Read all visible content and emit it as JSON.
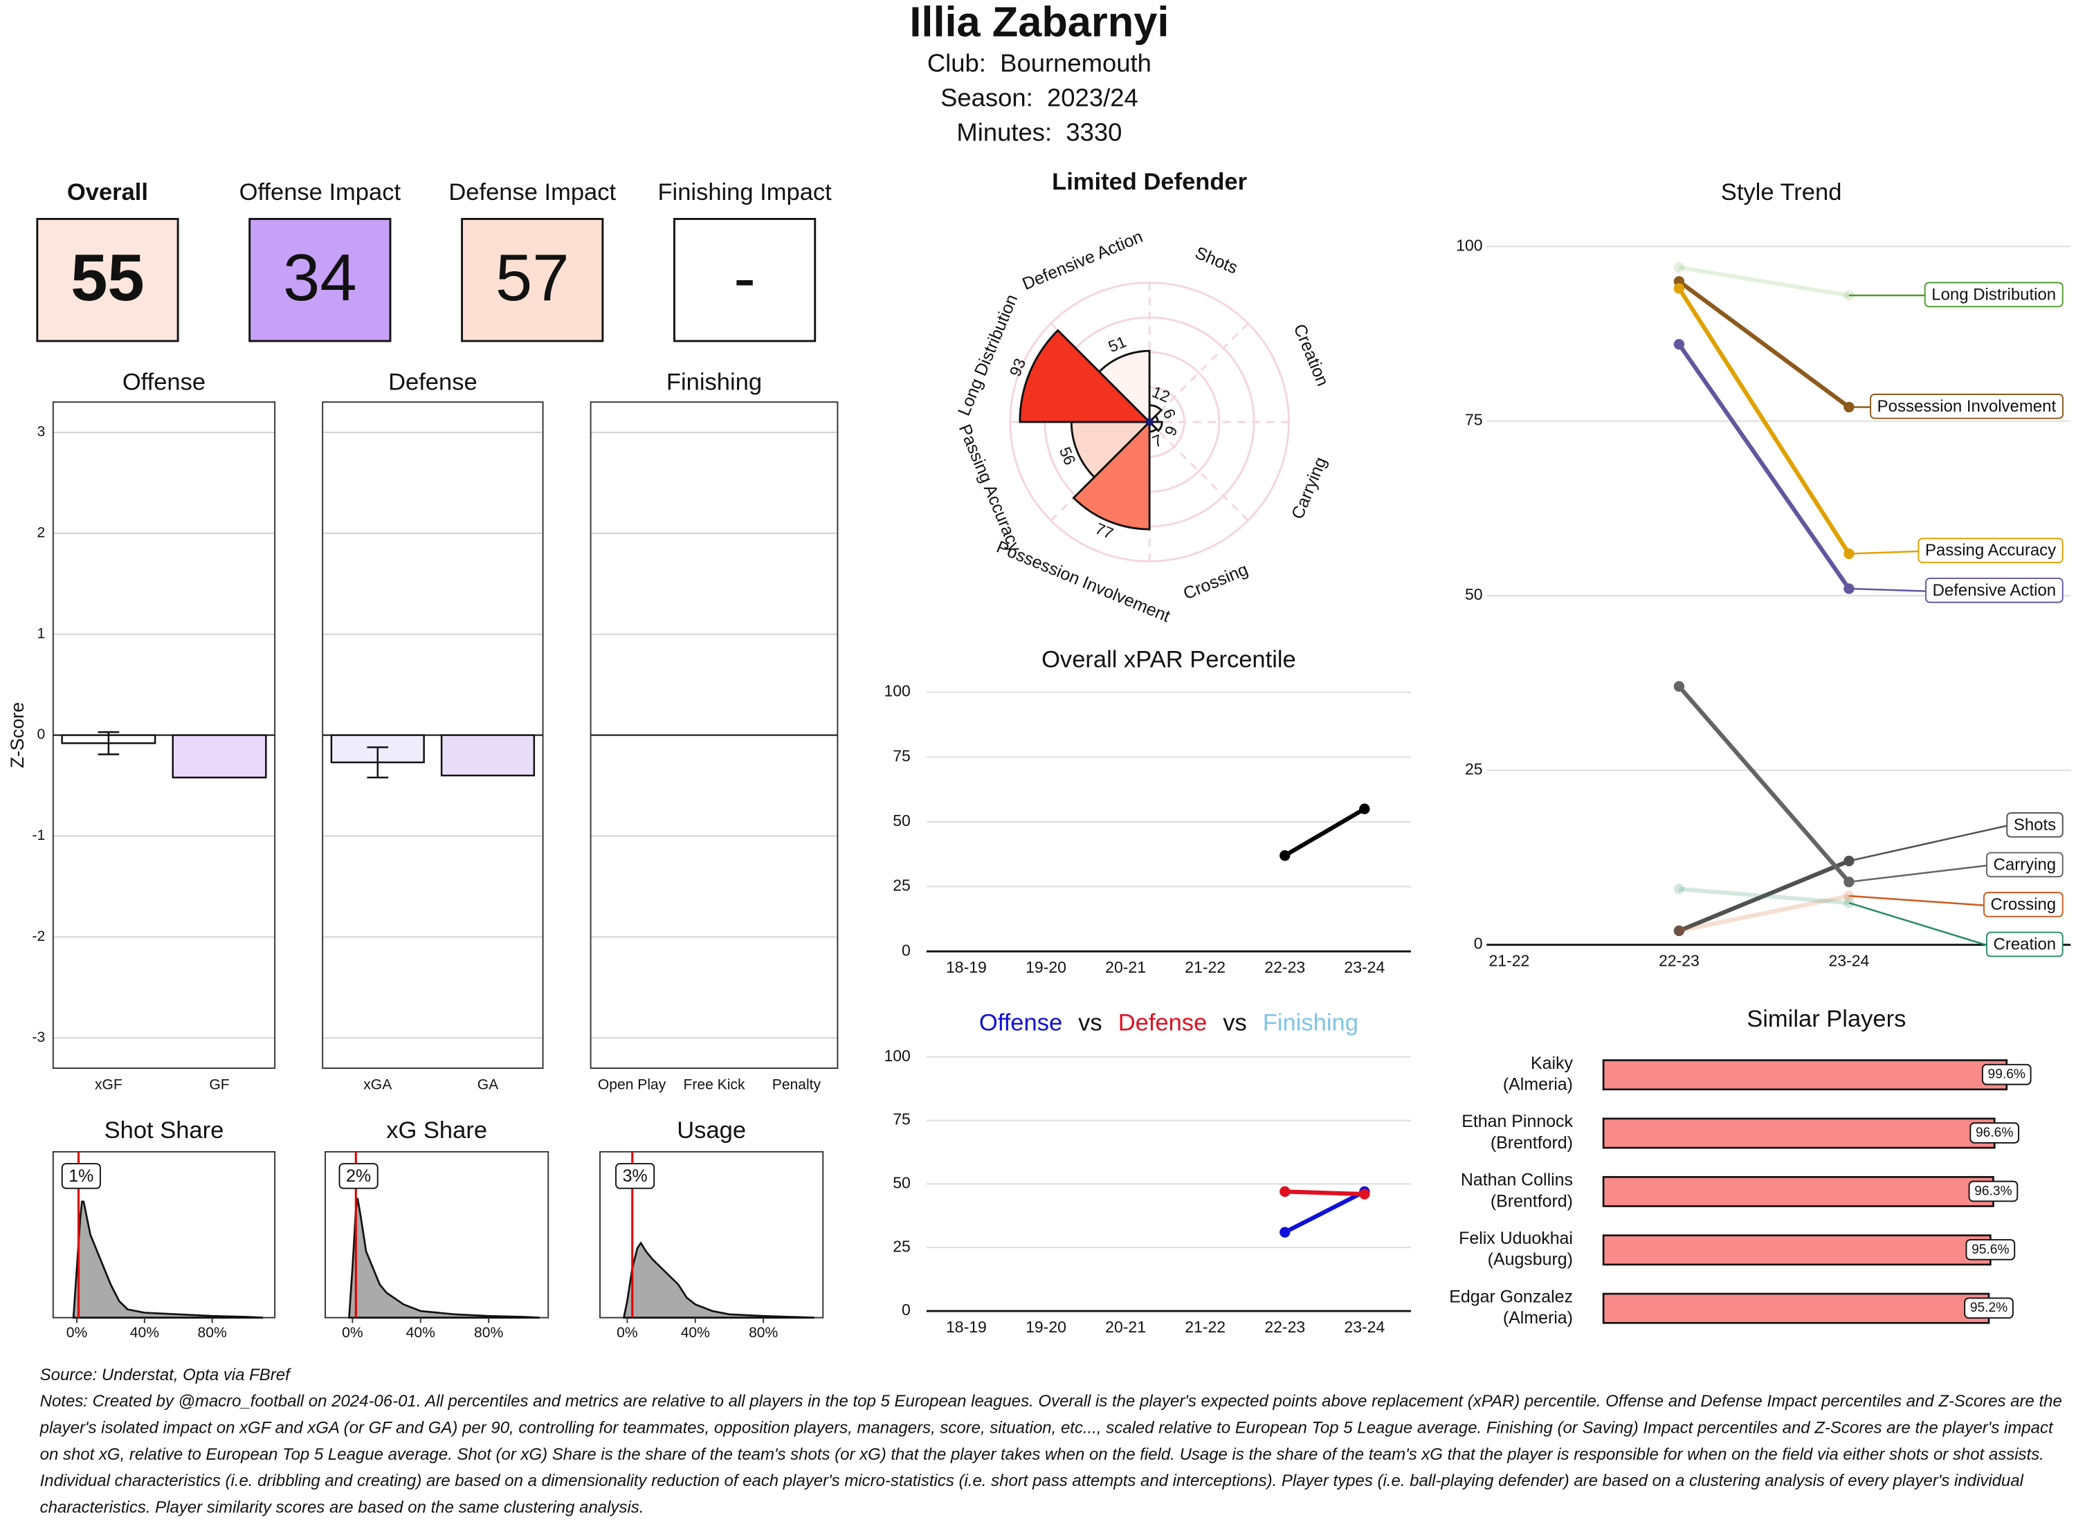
{
  "header": {
    "title": "Illia Zabarnyi",
    "club": "Club:  Bournemouth",
    "season": "Season:  2023/24",
    "minutes": "Minutes:  3330"
  },
  "tiles": [
    {
      "label": "Overall",
      "value": 55,
      "color": "#fde6dd",
      "bold": true
    },
    {
      "label": "Offense Impact",
      "value": 34,
      "color": "#c7a1f8",
      "bold": false
    },
    {
      "label": "Defense Impact",
      "value": 57,
      "color": "#fde0d3",
      "bold": false
    },
    {
      "label": "Finishing Impact",
      "value": "-",
      "color": "#ffffff",
      "bold": false
    }
  ],
  "chart_data": [
    {
      "type": "bar",
      "title": "Offense",
      "ylabel": "Z-Score",
      "categories": [
        "xGF",
        "GF"
      ],
      "values": [
        -0.08,
        -0.42
      ],
      "errors": [
        0.11,
        null
      ],
      "colors": [
        "#ffffff",
        "#ead9fb"
      ],
      "ylim": [
        -3.3,
        3.3
      ],
      "yticks": [
        -3,
        -2,
        -1,
        0,
        1,
        2,
        3
      ],
      "ytick_labels": true
    },
    {
      "type": "bar",
      "title": "Defense",
      "categories": [
        "xGA",
        "GA"
      ],
      "values": [
        -0.27,
        -0.4
      ],
      "errors": [
        0.15,
        null
      ],
      "colors": [
        "#efedfc",
        "#e9def9"
      ],
      "ylim": [
        -3.3,
        3.3
      ],
      "yticks": [
        -3,
        -2,
        -1,
        0,
        1,
        2,
        3
      ],
      "ytick_labels": false
    },
    {
      "type": "bar",
      "title": "Finishing",
      "categories": [
        "Open Play",
        "Free Kick",
        "Penalty"
      ],
      "values": [
        0,
        0,
        0
      ],
      "colors": [
        "#ffffff",
        "#ffffff",
        "#ffffff"
      ],
      "ylim": [
        -3.3,
        3.3
      ],
      "yticks": [
        -3,
        -2,
        -1,
        0,
        1,
        2,
        3
      ],
      "ytick_labels": false
    },
    {
      "type": "density",
      "title": "Shot Share",
      "x": [
        -2,
        0,
        2,
        3,
        4,
        6,
        8,
        12,
        16,
        20,
        25,
        30,
        40,
        60,
        80,
        100,
        110
      ],
      "values": [
        0,
        0.3,
        0.6,
        0.7,
        0.7,
        0.6,
        0.5,
        0.4,
        0.3,
        0.2,
        0.1,
        0.05,
        0.03,
        0.02,
        0.01,
        0.005,
        0
      ],
      "color": "#aaaaaa",
      "xlim": [
        -14,
        117
      ],
      "ylim": [
        0,
        1
      ],
      "xticks": [
        {
          "value": 0,
          "label": "0%"
        },
        {
          "value": 40,
          "label": "40%"
        },
        {
          "value": 80,
          "label": "80%"
        }
      ],
      "marker": {
        "value": 1,
        "label": "1%"
      },
      "marker_color": "#e00000"
    },
    {
      "type": "density",
      "title": "xG Share",
      "x": [
        -2,
        0,
        2,
        3,
        5,
        8,
        12,
        16,
        20,
        30,
        40,
        60,
        80,
        100,
        110
      ],
      "values": [
        0,
        0.3,
        0.65,
        0.72,
        0.6,
        0.4,
        0.3,
        0.2,
        0.15,
        0.08,
        0.04,
        0.02,
        0.01,
        0.005,
        0
      ],
      "color": "#aaaaaa",
      "xlim": [
        -16,
        115
      ],
      "ylim": [
        0,
        1
      ],
      "xticks": [
        {
          "value": 0,
          "label": "0%"
        },
        {
          "value": 40,
          "label": "40%"
        },
        {
          "value": 80,
          "label": "80%"
        }
      ],
      "marker": {
        "value": 2,
        "label": "2%"
      },
      "marker_color": "#e00000"
    },
    {
      "type": "density",
      "title": "Usage",
      "x": [
        -2,
        0,
        3,
        6,
        8,
        11,
        15,
        20,
        25,
        30,
        35,
        40,
        50,
        60,
        80,
        110
      ],
      "values": [
        0,
        0.1,
        0.3,
        0.42,
        0.45,
        0.4,
        0.35,
        0.3,
        0.25,
        0.2,
        0.12,
        0.08,
        0.04,
        0.02,
        0.01,
        0
      ],
      "color": "#aaaaaa",
      "xlim": [
        -16,
        115
      ],
      "ylim": [
        0,
        1
      ],
      "xticks": [
        {
          "value": 0,
          "label": "0%"
        },
        {
          "value": 40,
          "label": "40%"
        },
        {
          "value": 80,
          "label": "80%"
        }
      ],
      "marker": {
        "value": 3,
        "label": "3%"
      },
      "marker_color": "#e00000"
    },
    {
      "type": "polar_bar",
      "title": "Limited Defender",
      "categories": [
        "Shots",
        "Creation",
        "Carrying",
        "Crossing",
        "Possession Involvement",
        "Passing Accuracy",
        "Long Distribution",
        "Defensive Action"
      ],
      "values": [
        12,
        6,
        9,
        7,
        77,
        56,
        93,
        51
      ],
      "colors": [
        "#fff8f6",
        "#fffafa",
        "#fff9f8",
        "#fffafa",
        "#fb7a61",
        "#fdd8cd",
        "#f3321f",
        "#fff4f1"
      ],
      "rlim": [
        0,
        100
      ]
    },
    {
      "type": "line",
      "title": "Overall xPAR Percentile",
      "categories": [
        "18-19",
        "19-20",
        "20-21",
        "21-22",
        "22-23",
        "23-24"
      ],
      "values": [
        null,
        null,
        null,
        null,
        37,
        55
      ],
      "color": "#000000",
      "ylim": [
        0,
        106
      ],
      "yticks": [
        0,
        25,
        50,
        75,
        100
      ]
    },
    {
      "type": "line",
      "separator": "vs",
      "categories": [
        "18-19",
        "19-20",
        "20-21",
        "21-22",
        "22-23",
        "23-24"
      ],
      "series": [
        {
          "name": "Offense",
          "color": "#1010d8",
          "values": [
            null,
            null,
            null,
            null,
            31,
            47
          ]
        },
        {
          "name": "Defense",
          "color": "#e01020",
          "values": [
            null,
            null,
            null,
            null,
            47,
            46
          ]
        },
        {
          "name": "Finishing",
          "color": "#7ec4e6",
          "values": [
            null,
            null,
            null,
            null,
            null,
            null
          ]
        }
      ],
      "ylim": [
        0,
        106
      ],
      "yticks": [
        0,
        25,
        50,
        75,
        100
      ]
    },
    {
      "type": "line",
      "title": "Style Trend",
      "end_labels": true,
      "categories": [
        "21-22",
        "22-23",
        "23-24"
      ],
      "series": [
        {
          "name": "Long Distribution",
          "color": "#4f9a2a",
          "opacity": 0.15,
          "values": [
            null,
            97,
            93
          ]
        },
        {
          "name": "Possession Involvement",
          "color": "#8b5a1c",
          "opacity": 1,
          "values": [
            null,
            95,
            77
          ]
        },
        {
          "name": "Passing Accuracy",
          "color": "#dfa100",
          "opacity": 1,
          "values": [
            null,
            94,
            56
          ]
        },
        {
          "name": "Defensive Action",
          "color": "#62579e",
          "opacity": 1,
          "values": [
            null,
            86,
            51
          ]
        },
        {
          "name": "Shots",
          "color": "#505050",
          "opacity": 1,
          "values": [
            null,
            2,
            12
          ]
        },
        {
          "name": "Carrying",
          "color": "#646464",
          "opacity": 1,
          "values": [
            null,
            37,
            9
          ]
        },
        {
          "name": "Crossing",
          "color": "#cc5a1e",
          "opacity": 0.2,
          "values": [
            null,
            2,
            7
          ]
        },
        {
          "name": "Creation",
          "color": "#2a8a66",
          "opacity": 0.2,
          "values": [
            null,
            8,
            6
          ]
        }
      ],
      "ylim": [
        0,
        103
      ],
      "yticks": [
        0,
        25,
        50,
        75,
        100
      ]
    },
    {
      "type": "hbar",
      "title": "Similar Players",
      "categories": [
        "Kaiky",
        "Ethan Pinnock",
        "Nathan Collins",
        "Felix Uduokhai",
        "Edgar Gonzalez"
      ],
      "clubs": [
        "(Almeria)",
        "(Brentford)",
        "(Brentford)",
        "(Augsburg)",
        "(Almeria)"
      ],
      "values": [
        99.6,
        96.6,
        96.3,
        95.6,
        95.2
      ],
      "value_labels": [
        "99.6%",
        "96.6%",
        "96.3%",
        "95.6%",
        "95.2%"
      ],
      "color": "#f88a8a",
      "xlim": [
        0,
        100
      ]
    }
  ],
  "footer": {
    "source": "Source: Understat, Opta via FBref",
    "notes": "Notes: Created by @macro_football on 2024-06-01. All percentiles and metrics are relative to all players in the top 5 European leagues. Overall is the player's expected points above replacement (xPAR) percentile. Offense and Defense Impact percentiles and Z-Scores are the player's isolated impact on xGF and xGA (or GF and GA) per 90, controlling for teammates, opposition players, managers, score, situation, etc..., scaled relative to European Top 5 League average. Finishing (or Saving) Impact percentiles and Z-Scores are the player's impact on shot xG, relative to European Top 5 League average. Shot (or xG) Share is the share of the team's shots (or xG) that the player takes when on the field. Usage is the share of the team's xG that the player is responsible for when on the field via either shots or shot assists. Individual characteristics (i.e. dribbling and creating) are based on a dimensionality reduction of each player's micro-statistics (i.e. short pass attempts and interceptions). Player types (i.e. ball-playing defender) are based on a clustering analysis of every player's individual characteristics. Player similarity scores are based on the same clustering analysis."
  }
}
